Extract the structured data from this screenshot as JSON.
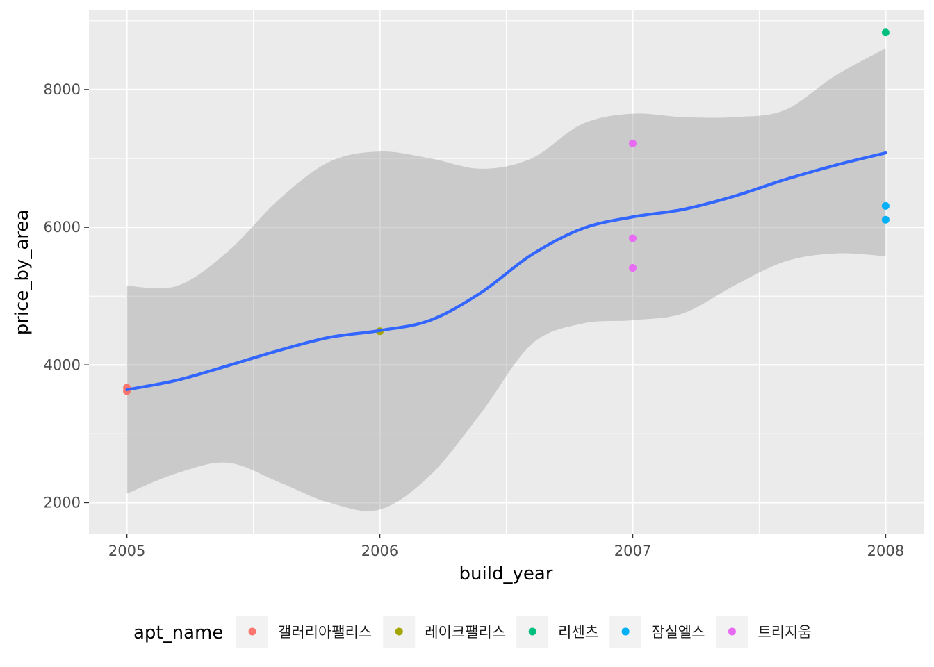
{
  "chart_data": {
    "type": "scatter",
    "xlabel": "build_year",
    "ylabel": "price_by_area",
    "xlim": [
      2004.85,
      2008.15
    ],
    "ylim": [
      1550,
      9150
    ],
    "x_ticks": [
      2005,
      2006,
      2007,
      2008
    ],
    "x_tick_labels": [
      "2005",
      "2006",
      "2007",
      "2008"
    ],
    "y_ticks": [
      2000,
      4000,
      6000,
      8000
    ],
    "y_tick_labels": [
      "2000",
      "4000",
      "6000",
      "8000"
    ],
    "grid": true,
    "legend_position": "bottom",
    "legend": {
      "title": "apt_name",
      "entries": [
        {
          "name": "갤러리아팰리스",
          "color": "#F8766D"
        },
        {
          "name": "레이크팰리스",
          "color": "#A3A500"
        },
        {
          "name": "리센츠",
          "color": "#00BF7D"
        },
        {
          "name": "잠실엘스",
          "color": "#00B0F6"
        },
        {
          "name": "트리지움",
          "color": "#E76BF3"
        }
      ]
    },
    "series": [
      {
        "name": "갤러리아팰리스",
        "color": "#F8766D",
        "points": [
          [
            2005,
            3670
          ],
          [
            2005,
            3620
          ]
        ]
      },
      {
        "name": "레이크팰리스",
        "color": "#A3A500",
        "points": [
          [
            2006,
            4490
          ]
        ]
      },
      {
        "name": "리센츠",
        "color": "#00BF7D",
        "points": [
          [
            2008,
            8830
          ]
        ]
      },
      {
        "name": "잠실엘스",
        "color": "#00B0F6",
        "points": [
          [
            2008,
            6310
          ],
          [
            2008,
            6110
          ]
        ]
      },
      {
        "name": "트리지움",
        "color": "#E76BF3",
        "points": [
          [
            2007,
            7220
          ],
          [
            2007,
            5840
          ],
          [
            2007,
            5410
          ]
        ]
      }
    ],
    "smooth": {
      "color": "#3366FF",
      "fit": [
        [
          2005.0,
          3640
        ],
        [
          2005.2,
          3780
        ],
        [
          2005.4,
          3990
        ],
        [
          2005.6,
          4210
        ],
        [
          2005.8,
          4400
        ],
        [
          2006.0,
          4500
        ],
        [
          2006.2,
          4650
        ],
        [
          2006.4,
          5050
        ],
        [
          2006.6,
          5600
        ],
        [
          2006.8,
          5980
        ],
        [
          2007.0,
          6150
        ],
        [
          2007.2,
          6260
        ],
        [
          2007.4,
          6450
        ],
        [
          2007.6,
          6690
        ],
        [
          2007.8,
          6900
        ],
        [
          2008.0,
          7080
        ]
      ],
      "upper": [
        [
          2005.0,
          5150
        ],
        [
          2005.2,
          5150
        ],
        [
          2005.4,
          5650
        ],
        [
          2005.6,
          6400
        ],
        [
          2005.8,
          6950
        ],
        [
          2006.0,
          7100
        ],
        [
          2006.2,
          7000
        ],
        [
          2006.4,
          6850
        ],
        [
          2006.6,
          7000
        ],
        [
          2006.8,
          7500
        ],
        [
          2007.0,
          7650
        ],
        [
          2007.2,
          7600
        ],
        [
          2007.4,
          7600
        ],
        [
          2007.6,
          7700
        ],
        [
          2007.8,
          8200
        ],
        [
          2008.0,
          8600
        ]
      ],
      "lower": [
        [
          2005.0,
          2130
        ],
        [
          2005.2,
          2430
        ],
        [
          2005.4,
          2580
        ],
        [
          2005.6,
          2300
        ],
        [
          2005.8,
          2000
        ],
        [
          2006.0,
          1900
        ],
        [
          2006.2,
          2400
        ],
        [
          2006.4,
          3300
        ],
        [
          2006.6,
          4300
        ],
        [
          2006.8,
          4600
        ],
        [
          2007.0,
          4650
        ],
        [
          2007.2,
          4750
        ],
        [
          2007.4,
          5150
        ],
        [
          2007.6,
          5500
        ],
        [
          2007.8,
          5620
        ],
        [
          2008.0,
          5580
        ]
      ]
    }
  },
  "colors": {
    "panel_background": "#EBEBEB",
    "grid": "#FFFFFF",
    "ribbon": "#999999",
    "legend_key_background": "#F2F2F2"
  }
}
